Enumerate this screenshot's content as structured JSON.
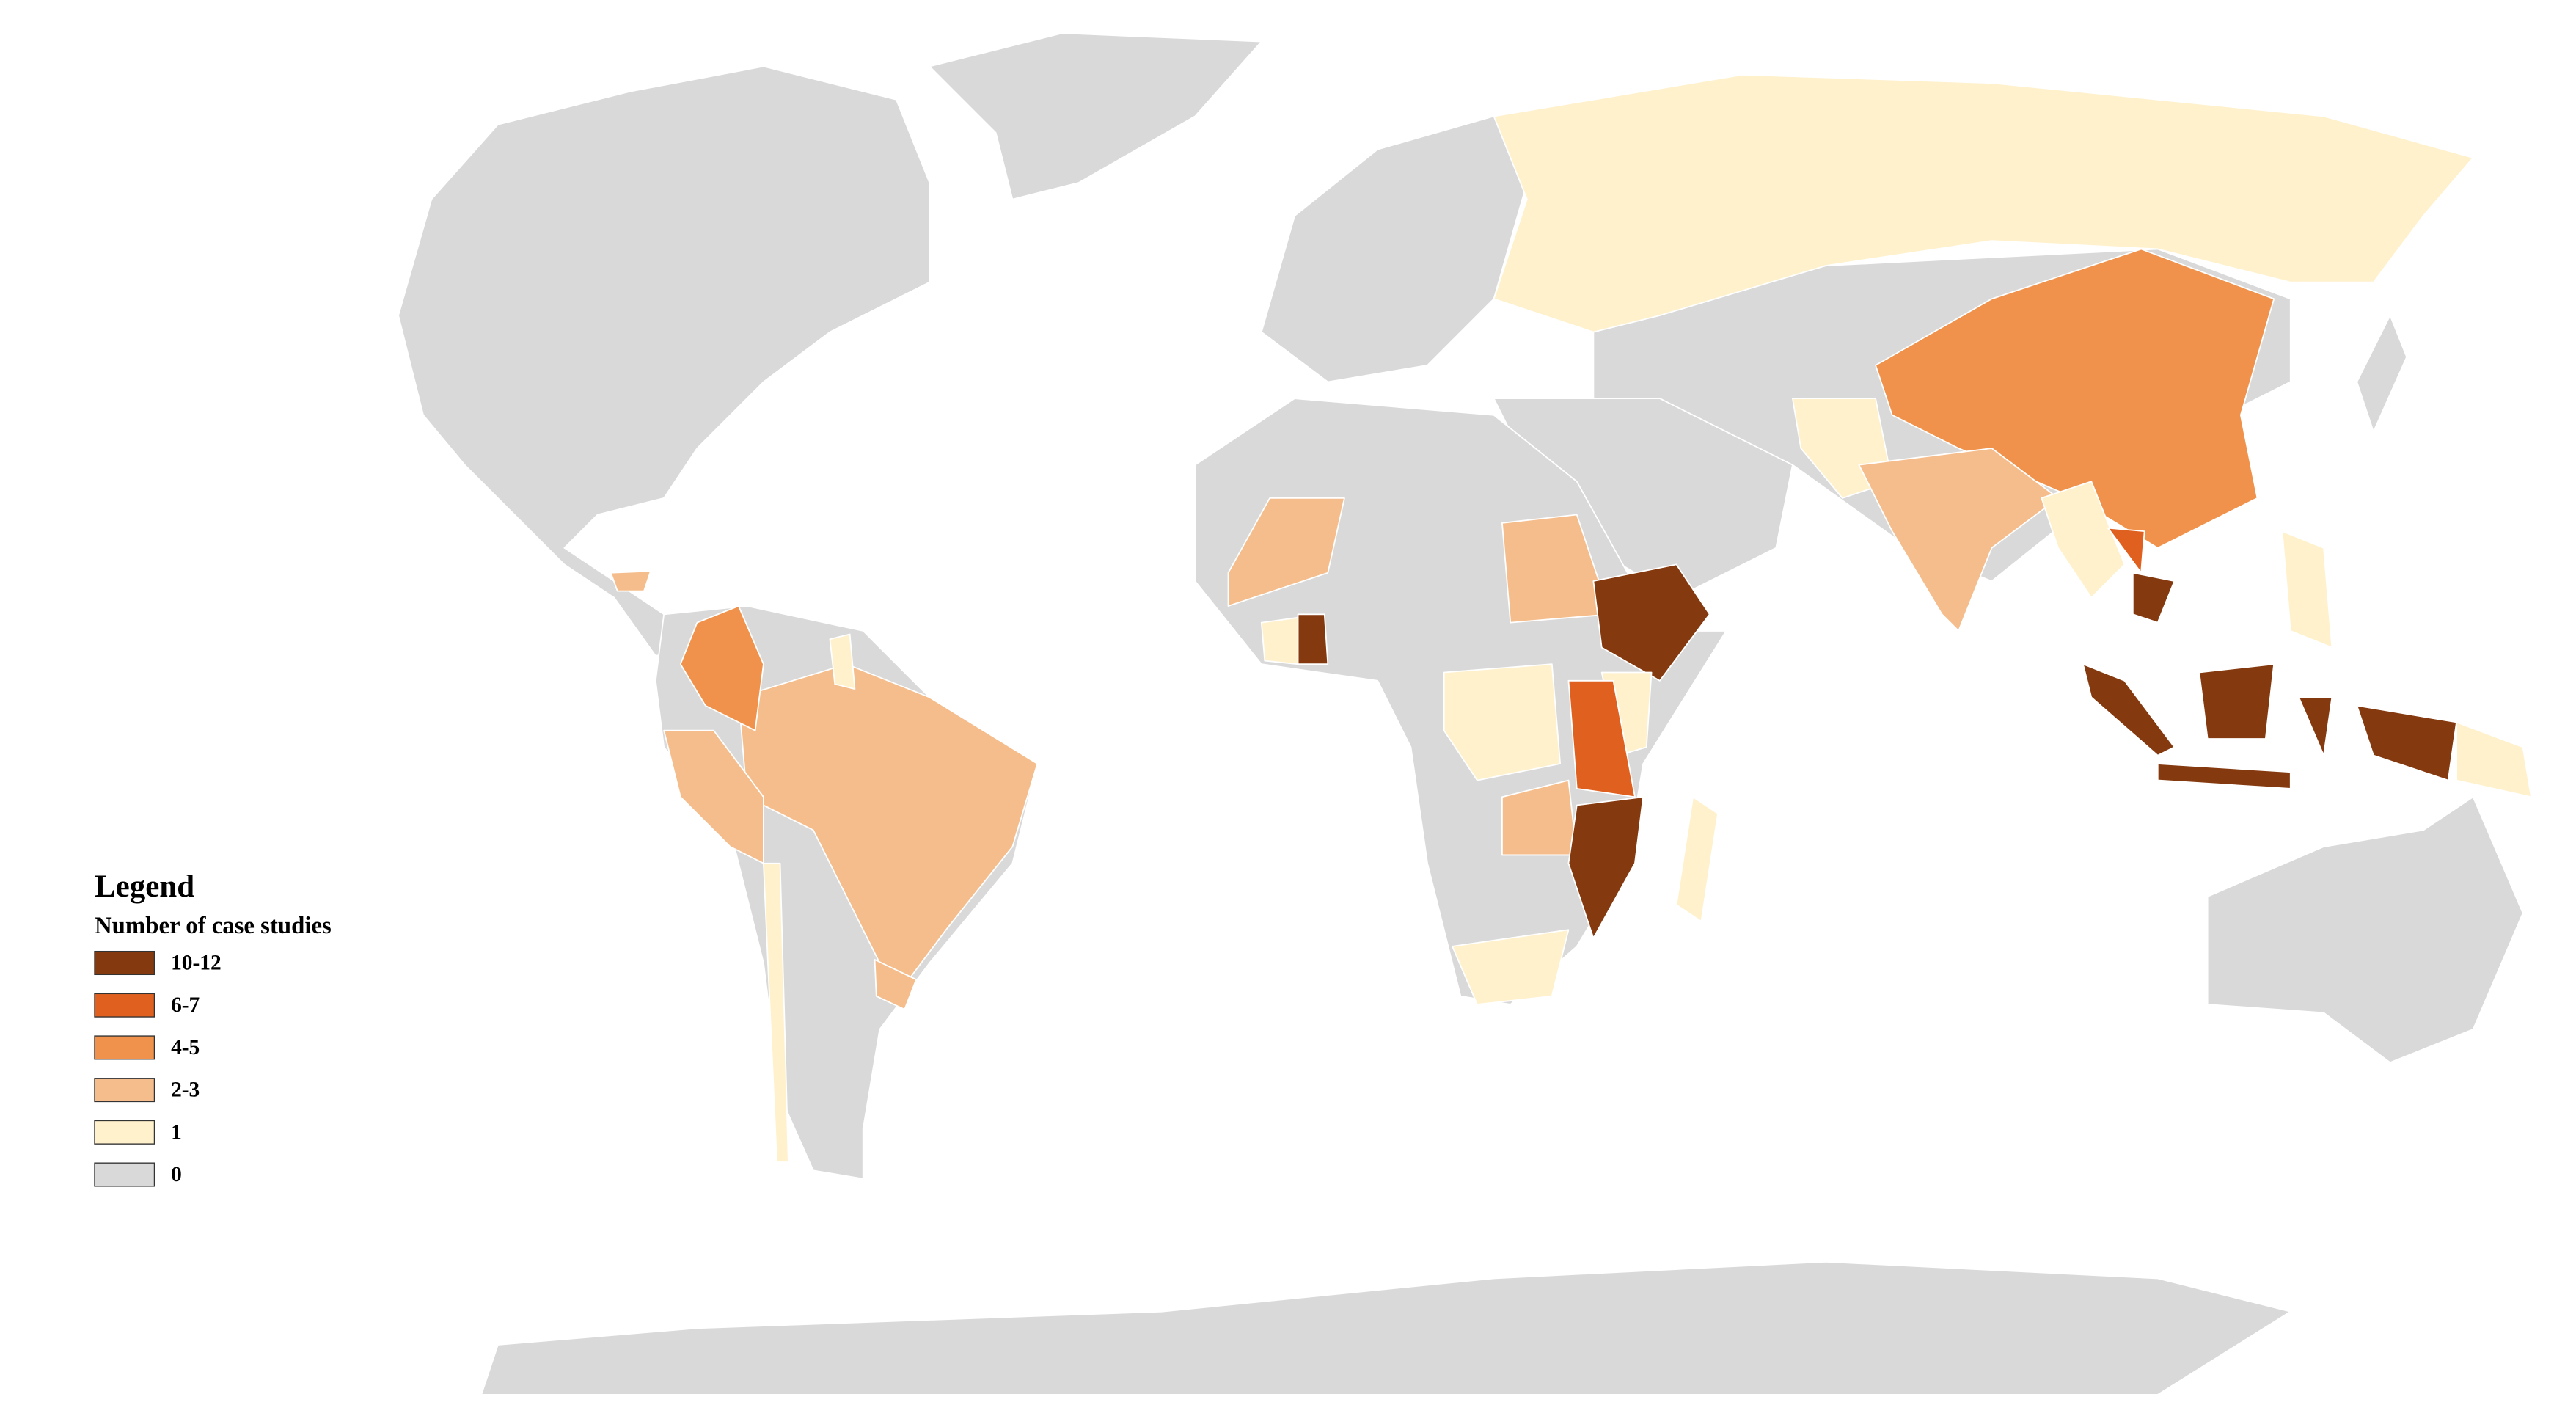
{
  "legend": {
    "title": "Legend",
    "subtitle": "Number of case studies",
    "items": [
      {
        "label": "10-12",
        "color": "#85390f"
      },
      {
        "label": "6-7",
        "color": "#e0611f"
      },
      {
        "label": "4-5",
        "color": "#f0924b"
      },
      {
        "label": "2-3",
        "color": "#f5bd8c"
      },
      {
        "label": "1",
        "color": "#fff1cc"
      },
      {
        "label": "0",
        "color": "#d9d9d9"
      }
    ]
  }
}
